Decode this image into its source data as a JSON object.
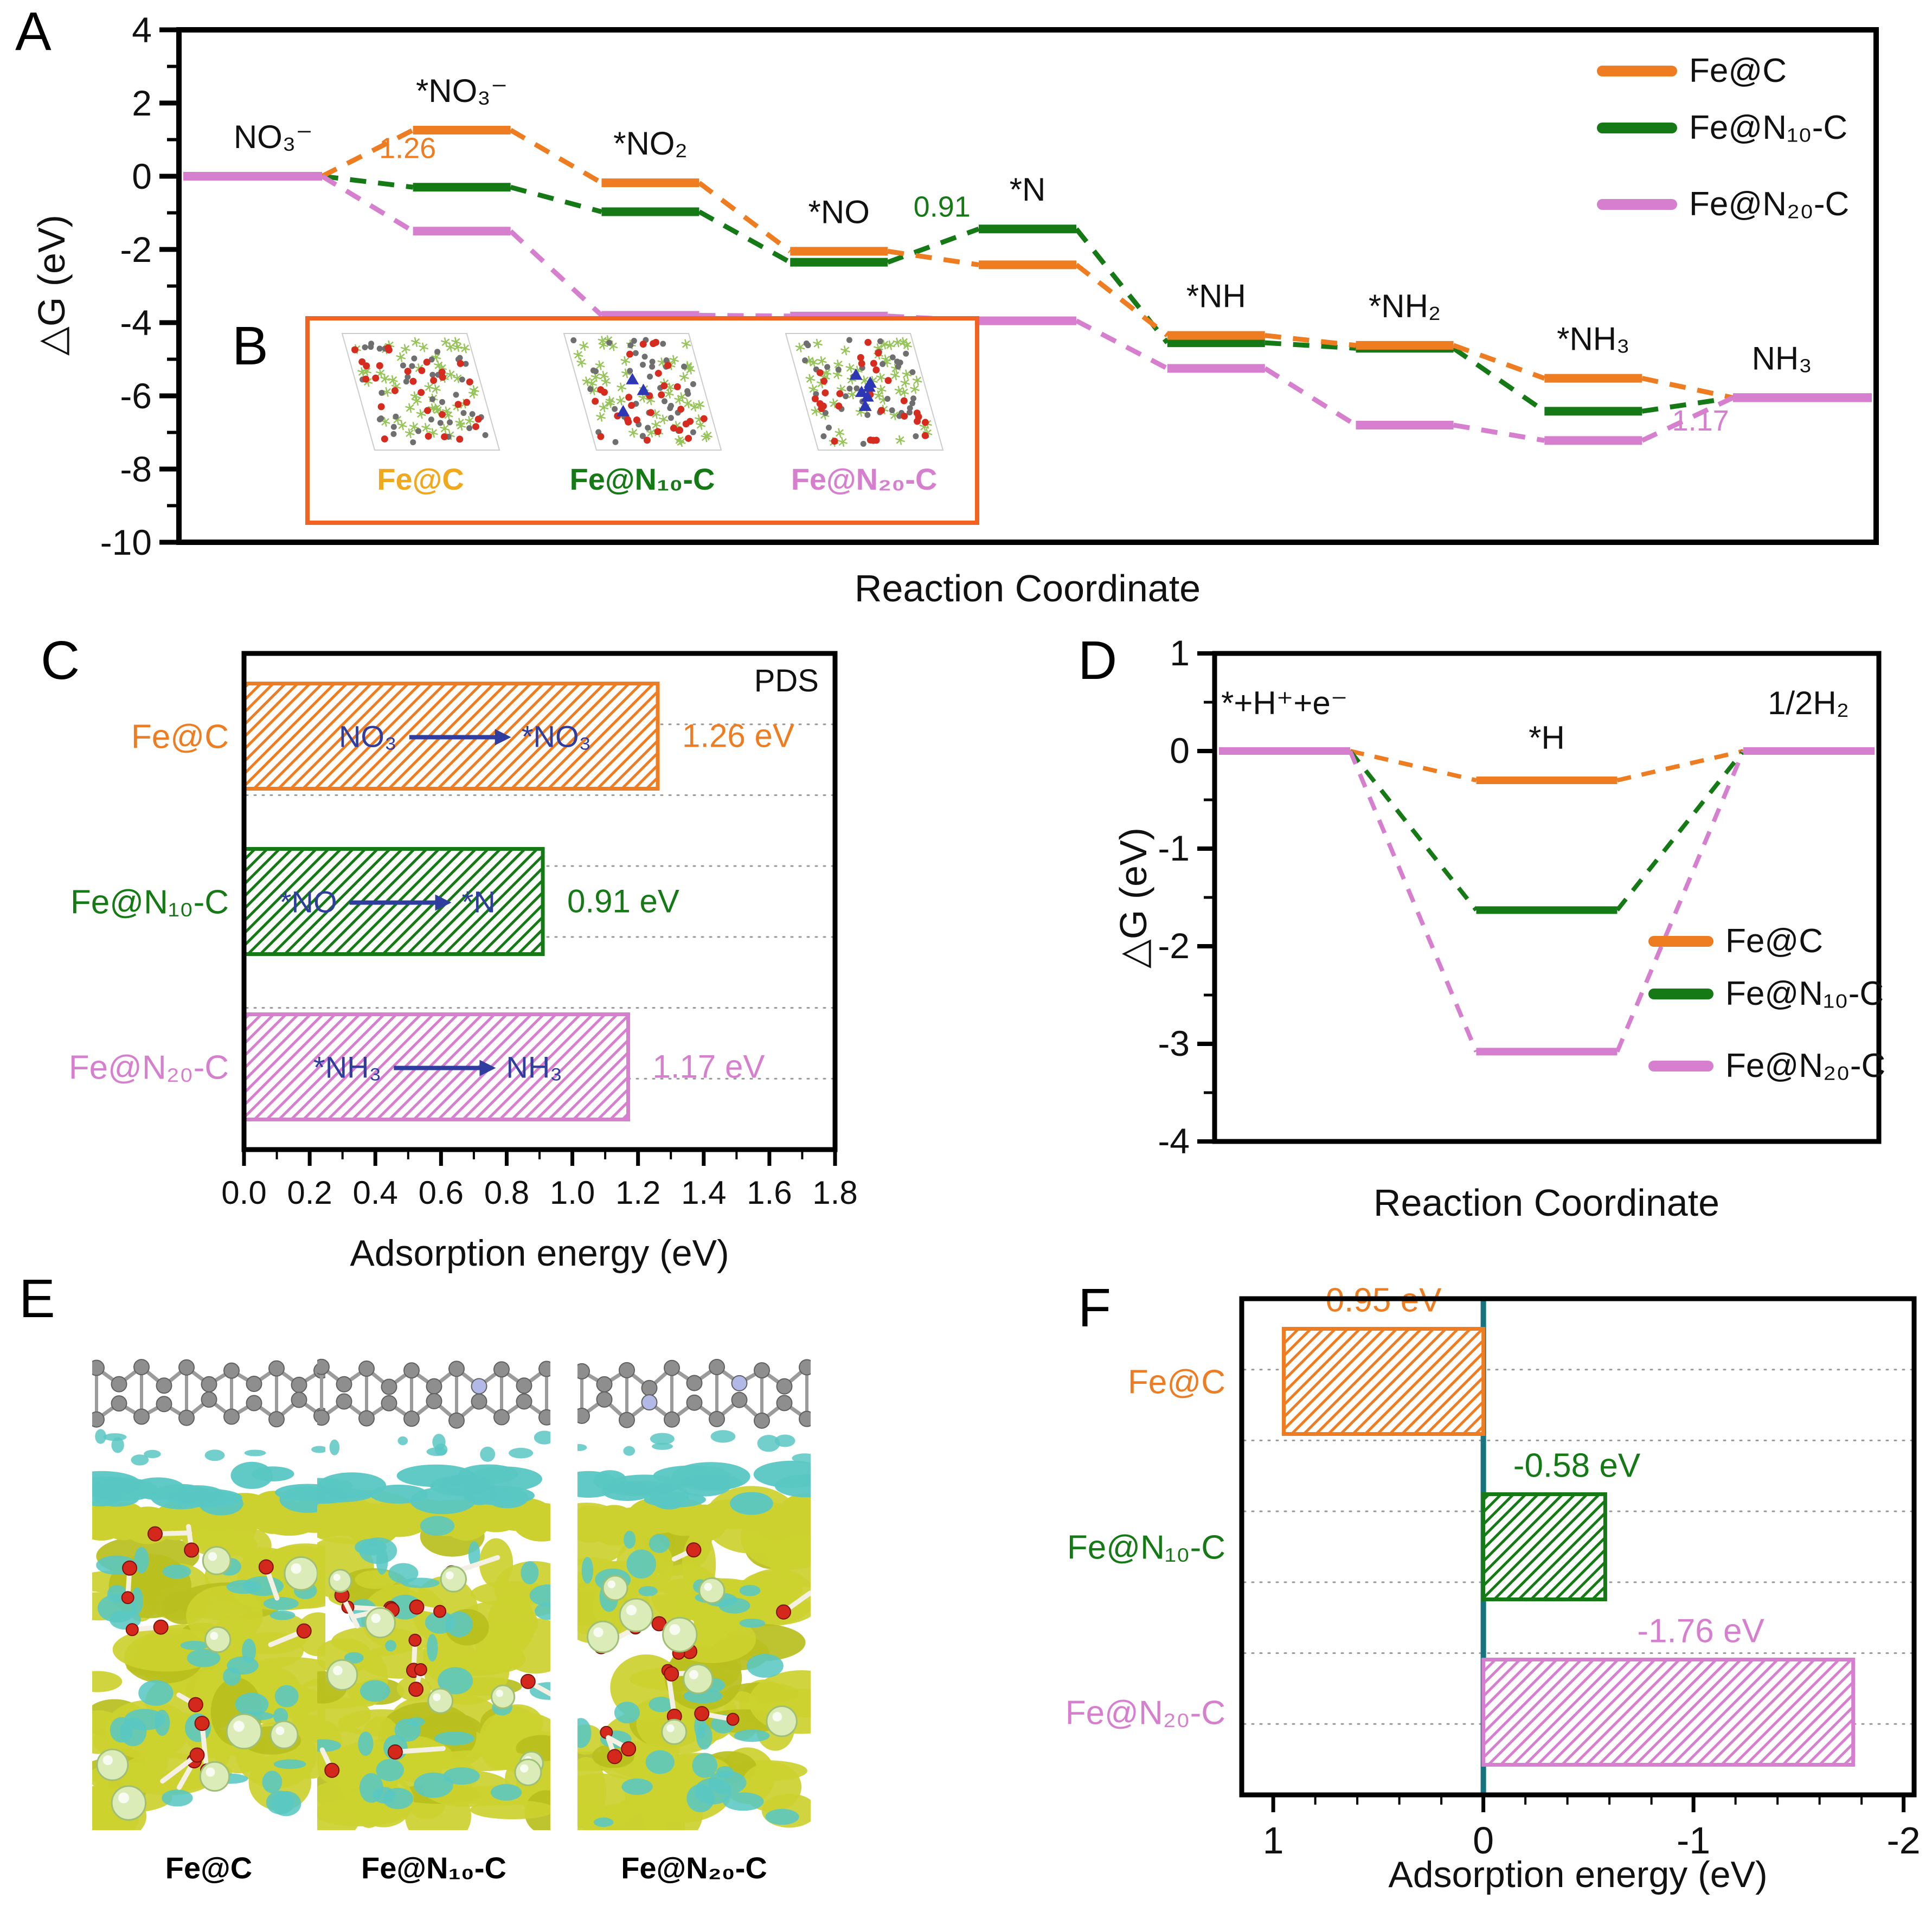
{
  "page": {
    "background": "#ffffff"
  },
  "panel_labels": {
    "a": "A",
    "b": "B",
    "c": "C",
    "d": "D",
    "e": "E",
    "f": "F"
  },
  "colors": {
    "orange": "#EE7C21",
    "green": "#157A15",
    "pink": "#D67FCE",
    "gold": "#F0A81C",
    "annotation_blue": "#2F3D9E",
    "teal": "#15747F",
    "inset_border": "#F26322",
    "grid_dotted": "#999999",
    "axis_black": "#000000"
  },
  "legend": {
    "items": [
      {
        "label": "Fe@C",
        "color_key": "orange"
      },
      {
        "label": "Fe@N₁₀-C",
        "color_key": "green"
      },
      {
        "label": "Fe@N₂₀-C",
        "color_key": "pink"
      }
    ]
  },
  "panel_b": {
    "structures": [
      {
        "label": "Fe@C",
        "color": "#F0A81C",
        "n_dopants": 0
      },
      {
        "label": "Fe@N₁₀-C",
        "color": "#157A15",
        "n_dopants": 3
      },
      {
        "label": "Fe@N₂₀-C",
        "color": "#D67FCE",
        "n_dopants": 6
      }
    ]
  },
  "panel_e": {
    "labels": [
      "Fe@C",
      "Fe@N₁₀-C",
      "Fe@N₂₀-C"
    ]
  },
  "chart_data": [
    {
      "id": "A",
      "type": "line",
      "subtype": "stepped-free-energy",
      "xlabel": "Reaction Coordinate",
      "ylabel": "△G (eV)",
      "ylim": [
        -10,
        4
      ],
      "ytick_step": 2,
      "minor_tick_step": 1,
      "grid": false,
      "legend_position": "top-right",
      "categories": [
        "NO₃⁻",
        "*NO₃⁻",
        "*NO₂",
        "*NO",
        "*N",
        "*NH",
        "*NH₂",
        "*NH₃",
        "NH₃"
      ],
      "series": [
        {
          "name": "Fe@C",
          "color": "#EE7C21",
          "values": [
            0,
            1.26,
            -0.18,
            -2.05,
            -2.42,
            -4.35,
            -4.62,
            -5.52,
            -6.05
          ]
        },
        {
          "name": "Fe@N₁₀-C",
          "color": "#157A15",
          "values": [
            0,
            -0.3,
            -0.97,
            -2.35,
            -1.44,
            -4.55,
            -4.7,
            -6.42,
            -6.05
          ]
        },
        {
          "name": "Fe@N₂₀-C",
          "color": "#D67FCE",
          "values": [
            0,
            -1.5,
            -3.8,
            -3.82,
            -3.95,
            -5.25,
            -6.8,
            -7.22,
            -6.05
          ]
        }
      ],
      "annotations": [
        {
          "text": "1.26",
          "color": "#EE7C21",
          "state": 1,
          "dx": -100,
          "at": 0.5
        },
        {
          "text": "0.91",
          "color": "#157A15",
          "state": 3,
          "dx": 190,
          "at": -1.1
        },
        {
          "text": "1.17",
          "color": "#D67FCE",
          "state": 8,
          "dx": -150,
          "at": -6.95
        }
      ]
    },
    {
      "id": "C",
      "type": "bar",
      "orientation": "horizontal",
      "xlabel": "Adsorption energy (eV)",
      "xlim": [
        0,
        1.8
      ],
      "xtick_step": 0.2,
      "minor_tick_step": 0.1,
      "corner_label": "PDS",
      "gridlines": "dotted",
      "hatch": true,
      "categories": [
        "Fe@C",
        "Fe@N₁₀-C",
        "Fe@N₂₀-C"
      ],
      "category_colors": [
        "#EE7C21",
        "#157A15",
        "#D67FCE"
      ],
      "values": [
        1.26,
        0.91,
        1.17
      ],
      "value_labels": [
        "1.26 eV",
        "0.91 eV",
        "1.17 eV"
      ],
      "annotation_color": "#2F3D9E",
      "bar_annotations": [
        {
          "from": "NO₃",
          "to": "*NO₃"
        },
        {
          "from": "*NO",
          "to": "*N"
        },
        {
          "from": "*NH₃",
          "to": "NH₃"
        }
      ]
    },
    {
      "id": "D",
      "type": "line",
      "subtype": "stepped-free-energy",
      "xlabel": "Reaction Coordinate",
      "ylabel": "△G (eV)",
      "ylim": [
        -4,
        1
      ],
      "ytick_step": 1,
      "minor_tick_step": 0.5,
      "grid": false,
      "legend_position": "bottom-right",
      "categories": [
        "*+H⁺+e⁻",
        "*H",
        "1/2H₂"
      ],
      "series": [
        {
          "name": "Fe@C",
          "color": "#EE7C21",
          "values": [
            0,
            -0.3,
            0
          ]
        },
        {
          "name": "Fe@N₁₀-C",
          "color": "#157A15",
          "values": [
            0,
            -1.63,
            0
          ]
        },
        {
          "name": "Fe@N₂₀-C",
          "color": "#D67FCE",
          "values": [
            0,
            -3.08,
            0
          ]
        }
      ]
    },
    {
      "id": "F",
      "type": "bar",
      "orientation": "horizontal",
      "xlabel": "Adsorption energy (eV)",
      "xlim": [
        1.15,
        -2.05
      ],
      "xticks": [
        1,
        0,
        -1,
        -2
      ],
      "minor_tick_step": 0.2,
      "zero_line_color": "#15747F",
      "gridlines": "dotted",
      "hatch": true,
      "categories": [
        "Fe@C",
        "Fe@N₁₀-C",
        "Fe@N₂₀-C"
      ],
      "category_colors": [
        "#EE7C21",
        "#157A15",
        "#D67FCE"
      ],
      "values": [
        0.95,
        -0.58,
        -1.76
      ],
      "value_labels": [
        "0.95 eV",
        "-0.58 eV",
        "-1.76 eV"
      ]
    }
  ]
}
